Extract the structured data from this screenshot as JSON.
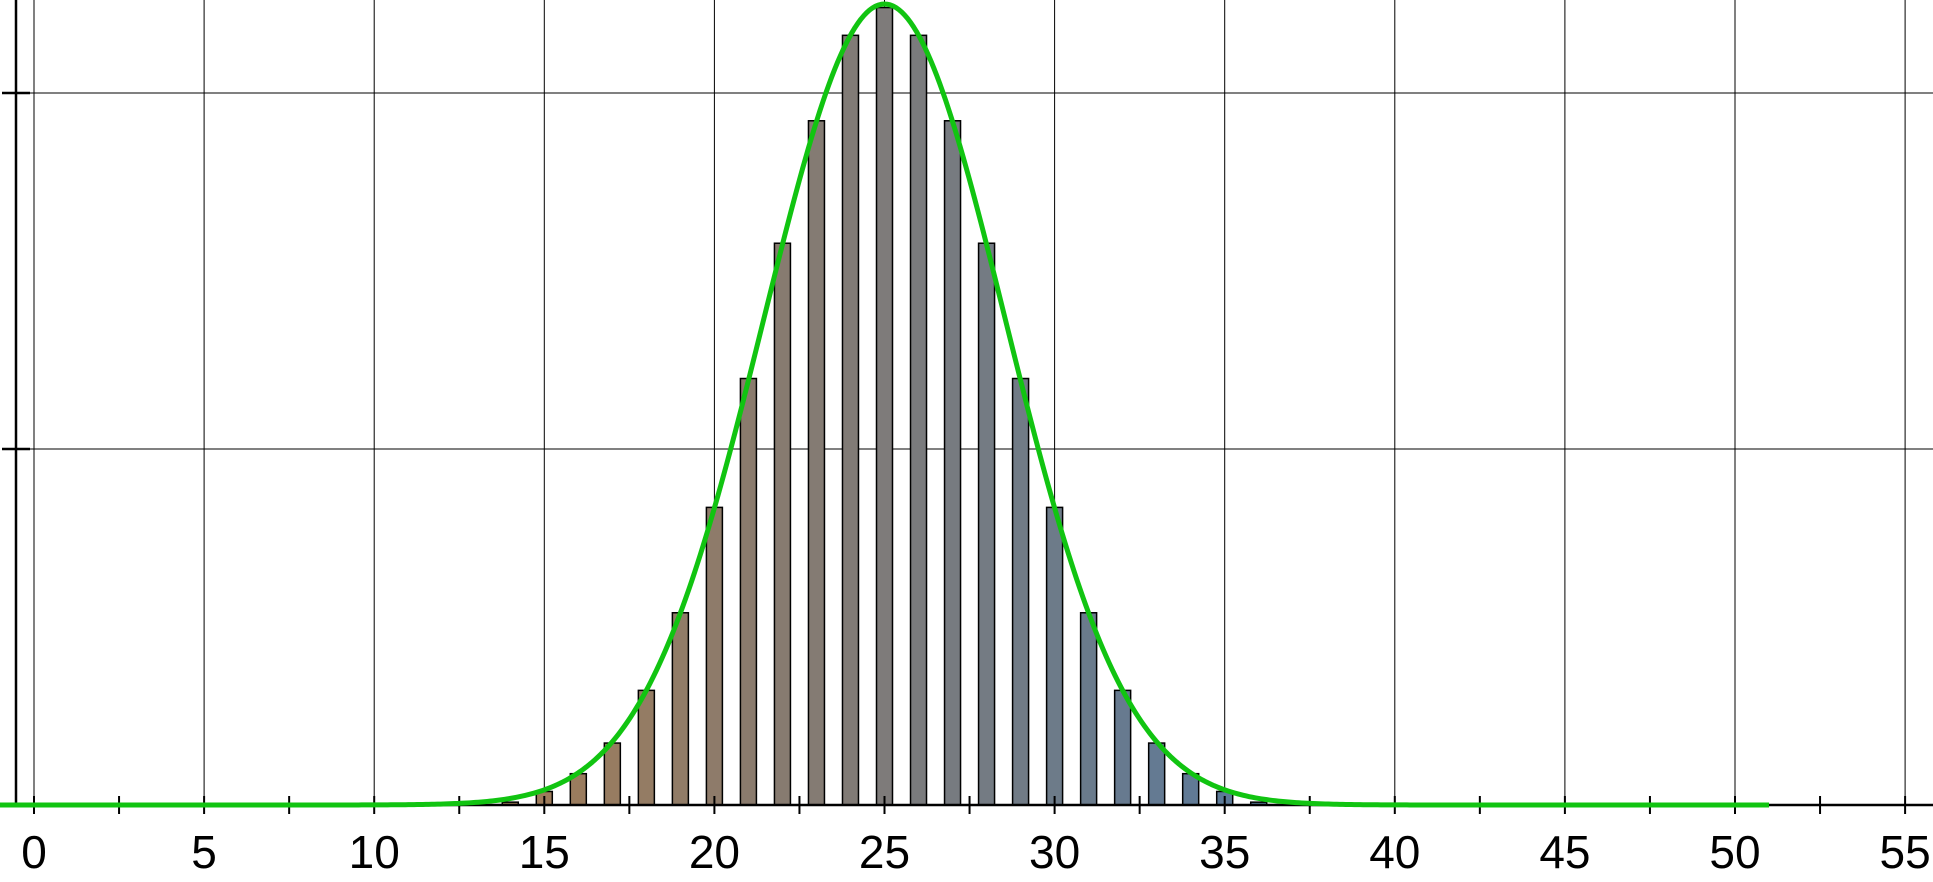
{
  "chart_data": {
    "type": "bar",
    "title": "",
    "xlabel": "",
    "ylabel": "",
    "xlim": [
      -0.5,
      56.5
    ],
    "ylim": [
      0,
      0.1125
    ],
    "grid": true,
    "x_ticks": [
      0,
      5,
      10,
      15,
      20,
      25,
      30,
      35,
      40,
      45,
      50,
      55
    ],
    "x_minor_step": 2.5,
    "y_ticks": [
      0.05,
      0.1
    ],
    "bars": {
      "x": [
        13,
        14,
        15,
        16,
        17,
        18,
        19,
        20,
        21,
        22,
        23,
        24,
        25,
        26,
        27,
        28,
        29,
        30,
        31,
        32,
        33,
        34,
        35,
        36,
        37
      ],
      "values": [
        0.0002,
        0.0004,
        0.0019,
        0.0044,
        0.0087,
        0.0161,
        0.027,
        0.0418,
        0.0599,
        0.0789,
        0.0961,
        0.1081,
        0.112,
        0.1081,
        0.0961,
        0.0789,
        0.0599,
        0.0418,
        0.027,
        0.0161,
        0.0087,
        0.0044,
        0.0019,
        0.0004,
        0.0002
      ],
      "color_left": "#a47c55",
      "color_right": "#577a9e",
      "outline": "#000000"
    },
    "curve": {
      "type": "normal",
      "mean": 25,
      "sd": 3.55,
      "peak": 0.1125,
      "x_range": [
        -0.5,
        51
      ],
      "color": "#11c411"
    }
  }
}
